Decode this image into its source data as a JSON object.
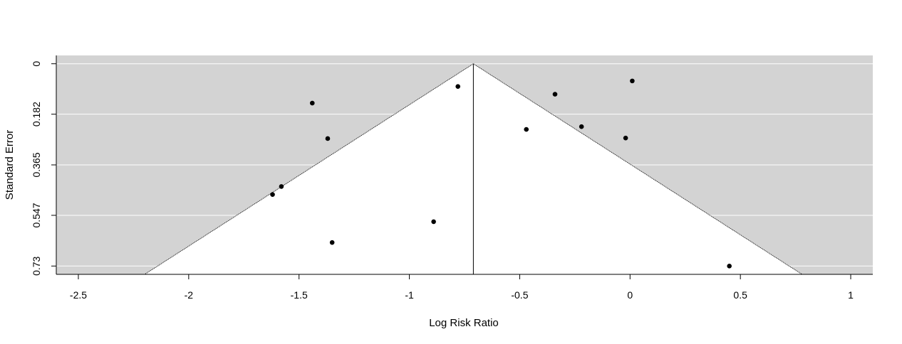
{
  "chart_data": {
    "type": "scatter",
    "title": "",
    "xlabel": "Log Risk Ratio",
    "ylabel": "Standard Error",
    "xlim": [
      -2.6,
      1.1
    ],
    "ylim": [
      0.76,
      -0.03
    ],
    "y_reversed": true,
    "x_ticks": [
      -2.5,
      -2,
      -1.5,
      -1,
      -0.5,
      0,
      0.5,
      1
    ],
    "x_tick_labels": [
      "-2.5",
      "-2",
      "-1.5",
      "-1",
      "-0.5",
      "0",
      "0.5",
      "1"
    ],
    "y_ticks": [
      0,
      0.182,
      0.365,
      0.547,
      0.73
    ],
    "y_tick_labels": [
      "0",
      "0.182",
      "0.365",
      "0.547",
      "0.73"
    ],
    "grid": true,
    "funnel": {
      "center_x": -0.71,
      "z": 1.96,
      "max_se": 0.76,
      "background_color": "#d3d3d3",
      "inner_color": "#ffffff"
    },
    "points": [
      {
        "x": -0.78,
        "y": 0.082
      },
      {
        "x": -1.44,
        "y": 0.142
      },
      {
        "x": -1.37,
        "y": 0.27
      },
      {
        "x": -1.58,
        "y": 0.443
      },
      {
        "x": -1.62,
        "y": 0.472
      },
      {
        "x": -0.89,
        "y": 0.57
      },
      {
        "x": -1.35,
        "y": 0.645
      },
      {
        "x": -0.47,
        "y": 0.237
      },
      {
        "x": -0.34,
        "y": 0.11
      },
      {
        "x": -0.22,
        "y": 0.227
      },
      {
        "x": 0.01,
        "y": 0.062
      },
      {
        "x": -0.02,
        "y": 0.268
      },
      {
        "x": 0.45,
        "y": 0.73
      }
    ]
  }
}
